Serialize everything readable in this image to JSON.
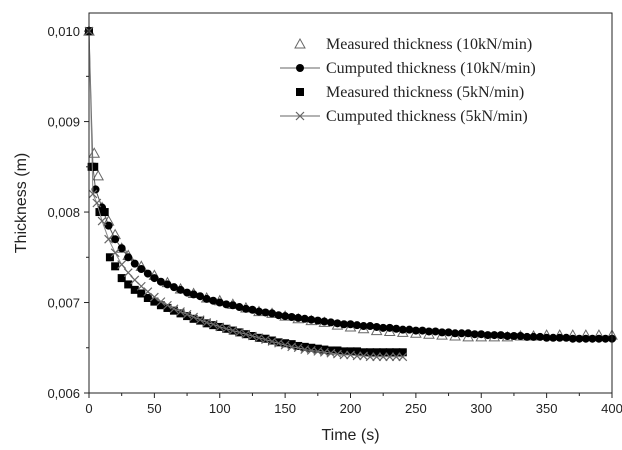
{
  "chart_data": {
    "type": "scatter",
    "title": "",
    "xlabel": "Time (s)",
    "ylabel": "Thickness (m)",
    "xlim": [
      0,
      400
    ],
    "ylim": [
      0.006,
      0.0102
    ],
    "x_ticks": [
      0,
      50,
      100,
      150,
      200,
      250,
      300,
      350,
      400
    ],
    "x_tick_labels": [
      "0",
      "50",
      "100",
      "150",
      "200",
      "250",
      "300",
      "350",
      "400"
    ],
    "y_ticks": [
      0.006,
      0.007,
      0.008,
      0.009,
      0.01
    ],
    "y_tick_labels": [
      "0,006",
      "0,007",
      "0,008",
      "0,009",
      "0,010"
    ],
    "grid": false,
    "legend_position": "top-right",
    "series": [
      {
        "name": "Measured  thickness (10kN/min)",
        "marker": "open-triangle",
        "line": false,
        "color": "#666666",
        "x": [
          0,
          4,
          7,
          10,
          15,
          20,
          25,
          30,
          40,
          50,
          60,
          70,
          80,
          90,
          100,
          110,
          120,
          130,
          140,
          150,
          160,
          170,
          180,
          190,
          200,
          210,
          220,
          230,
          240,
          250,
          260,
          270,
          280,
          290,
          300,
          310,
          320,
          330,
          340,
          350,
          360,
          370,
          380,
          390,
          400
        ],
        "y": [
          0.01,
          0.00865,
          0.0084,
          0.00805,
          0.0079,
          0.00775,
          0.0076,
          0.00752,
          0.0074,
          0.0073,
          0.00722,
          0.00715,
          0.0071,
          0.00705,
          0.00702,
          0.00698,
          0.00694,
          0.0069,
          0.00688,
          0.00685,
          0.00682,
          0.0068,
          0.00678,
          0.00675,
          0.00673,
          0.00671,
          0.00669,
          0.00668,
          0.00667,
          0.00666,
          0.00665,
          0.00664,
          0.00663,
          0.00662,
          0.00662,
          0.00662,
          0.00662,
          0.00663,
          0.00663,
          0.00664,
          0.00664,
          0.00664,
          0.00664,
          0.00664,
          0.00664
        ]
      },
      {
        "name": "Cumputed thickness (10kN/min)",
        "marker": "filled-circle",
        "line": true,
        "color": "#000000",
        "x": [
          0,
          3,
          5,
          10,
          15,
          20,
          25,
          30,
          35,
          40,
          45,
          50,
          55,
          60,
          65,
          70,
          75,
          80,
          85,
          90,
          95,
          100,
          105,
          110,
          115,
          120,
          125,
          130,
          135,
          140,
          145,
          150,
          155,
          160,
          165,
          170,
          175,
          180,
          185,
          190,
          195,
          200,
          205,
          210,
          215,
          220,
          225,
          230,
          235,
          240,
          245,
          250,
          255,
          260,
          265,
          270,
          275,
          280,
          285,
          290,
          295,
          300,
          305,
          310,
          315,
          320,
          325,
          330,
          335,
          340,
          345,
          350,
          355,
          360,
          365,
          370,
          375,
          380,
          385,
          390,
          395,
          400
        ],
        "y": [
          0.01,
          0.0085,
          0.00825,
          0.00805,
          0.00785,
          0.0077,
          0.0076,
          0.0075,
          0.00743,
          0.00737,
          0.00732,
          0.00727,
          0.00723,
          0.0072,
          0.00717,
          0.00714,
          0.00711,
          0.00709,
          0.00707,
          0.00704,
          0.00702,
          0.007,
          0.00698,
          0.00697,
          0.00695,
          0.00693,
          0.00692,
          0.0069,
          0.00689,
          0.00688,
          0.00686,
          0.00685,
          0.00684,
          0.00683,
          0.00682,
          0.00681,
          0.0068,
          0.00679,
          0.00678,
          0.00677,
          0.00676,
          0.00676,
          0.00675,
          0.00674,
          0.00674,
          0.00673,
          0.00672,
          0.00672,
          0.00671,
          0.0067,
          0.0067,
          0.00669,
          0.00669,
          0.00668,
          0.00668,
          0.00667,
          0.00667,
          0.00666,
          0.00666,
          0.00666,
          0.00665,
          0.00665,
          0.00664,
          0.00664,
          0.00664,
          0.00663,
          0.00663,
          0.00663,
          0.00662,
          0.00662,
          0.00662,
          0.00661,
          0.00661,
          0.00661,
          0.00661,
          0.0066,
          0.0066,
          0.0066,
          0.0066,
          0.0066,
          0.0066,
          0.0066
        ]
      },
      {
        "name": "Measured  thickness (5kN/min)",
        "marker": "filled-square",
        "line": false,
        "color": "#000000",
        "x": [
          0,
          2,
          4,
          8,
          12,
          16,
          20,
          25,
          30,
          35,
          40,
          45,
          50,
          55,
          60,
          65,
          70,
          75,
          80,
          85,
          90,
          95,
          100,
          105,
          110,
          115,
          120,
          125,
          130,
          135,
          140,
          145,
          150,
          155,
          160,
          165,
          170,
          175,
          180,
          185,
          190,
          195,
          200,
          205,
          210,
          215,
          220,
          225,
          230,
          235,
          240
        ],
        "y": [
          0.01,
          0.0085,
          0.0085,
          0.008,
          0.008,
          0.0075,
          0.0074,
          0.00727,
          0.0072,
          0.00714,
          0.0071,
          0.00705,
          0.00701,
          0.00697,
          0.00694,
          0.00691,
          0.00688,
          0.00685,
          0.00682,
          0.0068,
          0.00677,
          0.00675,
          0.00673,
          0.00671,
          0.00669,
          0.00667,
          0.00665,
          0.00663,
          0.00661,
          0.0066,
          0.00658,
          0.00656,
          0.00655,
          0.00654,
          0.00652,
          0.00651,
          0.0065,
          0.00649,
          0.00648,
          0.00647,
          0.00647,
          0.00646,
          0.00646,
          0.00646,
          0.00645,
          0.00645,
          0.00645,
          0.00645,
          0.00645,
          0.00645,
          0.00645
        ]
      },
      {
        "name": "Cumputed thickness (5kN/min)",
        "marker": "x",
        "line": true,
        "color": "#666666",
        "x": [
          0,
          3,
          6,
          10,
          15,
          20,
          25,
          30,
          35,
          40,
          45,
          50,
          55,
          60,
          65,
          70,
          75,
          80,
          85,
          90,
          95,
          100,
          105,
          110,
          115,
          120,
          125,
          130,
          135,
          140,
          145,
          150,
          155,
          160,
          165,
          170,
          175,
          180,
          185,
          190,
          195,
          200,
          205,
          210,
          215,
          220,
          225,
          230,
          235,
          240
        ],
        "y": [
          0.01,
          0.0082,
          0.0081,
          0.0079,
          0.0077,
          0.00755,
          0.00742,
          0.00733,
          0.00725,
          0.00718,
          0.00712,
          0.00706,
          0.00701,
          0.00697,
          0.00693,
          0.0069,
          0.00687,
          0.00684,
          0.00681,
          0.00678,
          0.00676,
          0.00673,
          0.00671,
          0.00669,
          0.00667,
          0.00665,
          0.00663,
          0.00661,
          0.00659,
          0.00657,
          0.00655,
          0.00653,
          0.00651,
          0.0065,
          0.00648,
          0.00647,
          0.00646,
          0.00645,
          0.00644,
          0.00643,
          0.00642,
          0.00642,
          0.00641,
          0.00641,
          0.0064,
          0.0064,
          0.0064,
          0.0064,
          0.0064,
          0.0064
        ]
      }
    ]
  }
}
